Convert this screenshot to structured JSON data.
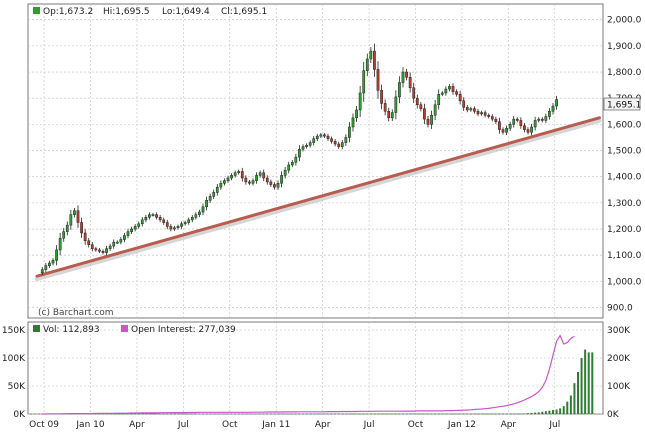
{
  "price_header": {
    "open": "Op:1,673.2",
    "high": "Hi:1,695.5",
    "low": "Lo:1,649.4",
    "close": "Cl:1,695.1"
  },
  "watermark": "(c) Barchart.com",
  "volume_header": {
    "vol": "Vol: 112,893",
    "oi": "Open Interest: 277,039"
  },
  "last_price_tag": "1,695.1",
  "colors": {
    "up": "#2ca02c",
    "down": "#c0392b",
    "trendline": "#b85c50",
    "oi_line": "#cc55cc",
    "volume": "#2e7d32",
    "grid": "#c0c0c0",
    "plot_bg": "#ffffff"
  },
  "chart_data": [
    {
      "type": "candlestick",
      "title": "",
      "price_axis_labels": [
        "900.0",
        "1,000.0",
        "1,100.0",
        "1,200.0",
        "1,300.0",
        "1,400.0",
        "1,500.0",
        "1,600.0",
        "1,700.0",
        "1,800.0",
        "1,900.0",
        "2,000.0"
      ],
      "price_ticks": [
        900,
        1000,
        1100,
        1200,
        1300,
        1400,
        1500,
        1600,
        1700,
        1800,
        1900,
        2000
      ],
      "ylim": [
        860,
        2060
      ],
      "x_labels": [
        "Oct 09",
        "Jan 10",
        "Apr",
        "Jul",
        "Oct",
        "Jan 11",
        "Apr",
        "Jul",
        "Oct",
        "Jan 12",
        "Apr",
        "Jul"
      ],
      "x_ticks": [
        0.5,
        13.5,
        26.5,
        39.5,
        52.5,
        65.5,
        78.5,
        91.5,
        104.5,
        117.5,
        130.5,
        143.5
      ],
      "xlim": [
        -4,
        157
      ],
      "grid": true,
      "trendline": {
        "x": [
          -1.5,
          156
        ],
        "y": [
          1020,
          1625
        ]
      },
      "closes": [
        1045,
        1060,
        1070,
        1080,
        1120,
        1165,
        1190,
        1215,
        1255,
        1270,
        1225,
        1185,
        1155,
        1140,
        1125,
        1120,
        1115,
        1110,
        1125,
        1135,
        1150,
        1150,
        1160,
        1175,
        1190,
        1200,
        1210,
        1220,
        1235,
        1245,
        1255,
        1255,
        1245,
        1235,
        1225,
        1210,
        1200,
        1205,
        1210,
        1220,
        1225,
        1235,
        1245,
        1255,
        1265,
        1285,
        1310,
        1325,
        1340,
        1360,
        1375,
        1385,
        1395,
        1405,
        1415,
        1420,
        1395,
        1380,
        1375,
        1385,
        1405,
        1415,
        1395,
        1380,
        1370,
        1360,
        1375,
        1405,
        1425,
        1445,
        1455,
        1475,
        1505,
        1515,
        1520,
        1530,
        1545,
        1555,
        1560,
        1555,
        1545,
        1535,
        1525,
        1515,
        1530,
        1550,
        1590,
        1625,
        1655,
        1720,
        1805,
        1850,
        1880,
        1810,
        1730,
        1680,
        1650,
        1625,
        1645,
        1705,
        1760,
        1800,
        1780,
        1740,
        1700,
        1675,
        1660,
        1620,
        1600,
        1635,
        1675,
        1715,
        1720,
        1735,
        1745,
        1725,
        1715,
        1690,
        1665,
        1655,
        1660,
        1650,
        1640,
        1645,
        1635,
        1630,
        1620,
        1610,
        1580,
        1570,
        1585,
        1600,
        1620,
        1615,
        1595,
        1580,
        1570,
        1590,
        1615,
        1620,
        1615,
        1630,
        1650,
        1670,
        1695
      ],
      "volume_axis_labels": [
        "0K",
        "50K",
        "100K",
        "150K"
      ],
      "volume_ticks": [
        0,
        50,
        100,
        150
      ],
      "volume_ylim": [
        0,
        150
      ],
      "volume": [
        0.5,
        0.5,
        0.5,
        0.5,
        0.5,
        0.5,
        0.5,
        0.5,
        0.5,
        0.5,
        0.5,
        0.5,
        0.5,
        0.5,
        0.5,
        0.5,
        0.5,
        0.5,
        0.5,
        0.5,
        0.5,
        0.5,
        0.5,
        0.5,
        0.5,
        0.5,
        0.5,
        0.5,
        0.5,
        0.5,
        0.5,
        0.5,
        0.5,
        0.5,
        0.5,
        0.5,
        0.5,
        0.5,
        0.5,
        0.5,
        0.5,
        0.5,
        0.5,
        0.5,
        0.5,
        0.5,
        0.5,
        0.5,
        0.5,
        0.5,
        0.5,
        0.5,
        0.5,
        0.5,
        0.5,
        0.5,
        0.5,
        0.5,
        0.5,
        0.5,
        0.5,
        0.5,
        0.5,
        0.5,
        0.5,
        0.5,
        0.5,
        0.5,
        0.5,
        0.5,
        0.5,
        0.5,
        0.5,
        0.5,
        0.5,
        0.5,
        0.5,
        0.5,
        0.5,
        0.5,
        0.5,
        0.5,
        0.5,
        0.5,
        0.5,
        0.5,
        0.5,
        0.5,
        0.5,
        0.5,
        0.5,
        0.5,
        0.5,
        0.5,
        0.5,
        0.5,
        0.5,
        0.5,
        0.5,
        0.5,
        0.5,
        0.5,
        0.5,
        0.5,
        0.5,
        0.5,
        0.5,
        0.5,
        0.5,
        0.5,
        0.5,
        0.5,
        0.5,
        0.5,
        0.5,
        0.5,
        0.5,
        0.5,
        0.5,
        0.5,
        0.5,
        0.5,
        0.5,
        0.5,
        0.5,
        0.5,
        0.5,
        0.5,
        0.5,
        0.5,
        0.5,
        0.5,
        0.5,
        0.5,
        0.5,
        1,
        1.5,
        2,
        2.5,
        3,
        4,
        5,
        6,
        7,
        8,
        10,
        14,
        22,
        33,
        55,
        75,
        100,
        115,
        110,
        110
      ],
      "open_interest_axis_labels": [
        "0K",
        "100K",
        "200K",
        "300K"
      ],
      "open_interest_ticks": [
        0,
        100,
        200,
        300
      ],
      "open_interest_ylim": [
        0,
        300
      ],
      "open_interest": [
        0,
        0,
        0.5,
        0.5,
        0.8,
        0.8,
        1,
        1.2,
        1.5,
        1.5,
        1.5,
        1.5,
        1.5,
        1.5,
        1.8,
        2,
        2,
        2,
        2.5,
        2.5,
        2.5,
        3,
        3,
        3,
        3,
        3.5,
        3.5,
        3.5,
        4,
        4,
        4,
        4,
        4,
        4.5,
        4.5,
        4.5,
        5,
        5,
        5,
        5,
        5,
        5.5,
        5.5,
        5.5,
        6,
        6,
        6,
        6,
        6,
        6,
        6,
        6,
        6,
        6,
        6,
        6,
        6,
        6,
        6,
        6.5,
        6.5,
        6.5,
        6.5,
        7,
        7,
        7,
        7,
        7,
        7.5,
        7.5,
        7.5,
        7.5,
        8,
        8,
        8,
        8,
        8,
        8,
        8,
        8,
        8.5,
        8.5,
        8.5,
        8.5,
        9,
        9,
        9,
        9,
        9,
        9.5,
        9.5,
        9.5,
        9.5,
        10,
        10,
        10,
        10,
        10,
        10,
        10,
        10,
        10.5,
        10.5,
        10.5,
        10.5,
        11,
        11,
        11,
        11,
        11,
        11,
        11,
        11,
        12,
        12,
        12,
        13,
        13,
        14,
        14,
        15,
        16,
        17,
        18,
        19,
        20,
        22,
        24,
        26,
        28,
        30,
        33,
        36,
        40,
        45,
        50,
        56,
        62,
        70,
        80,
        95,
        120,
        160,
        210,
        260,
        280,
        250,
        255,
        270,
        277
      ]
    }
  ]
}
